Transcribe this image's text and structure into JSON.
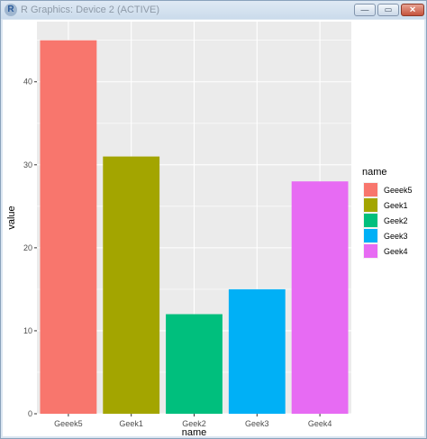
{
  "window": {
    "title": "R Graphics: Device 2 (ACTIVE)",
    "app_icon_letter": "R",
    "minimize_glyph": "—",
    "maximize_glyph": "▭",
    "close_glyph": "✕"
  },
  "chart_data": {
    "type": "bar",
    "categories": [
      "Geeek5",
      "Geek1",
      "Geek2",
      "Geek3",
      "Geek4"
    ],
    "values": [
      45,
      31,
      12,
      15,
      28
    ],
    "colors": [
      "#F8766D",
      "#A3A500",
      "#00BF7D",
      "#00B0F6",
      "#E76BF3"
    ],
    "xlabel": "name",
    "ylabel": "value",
    "ylim": [
      0,
      47.25
    ],
    "yticks": [
      0,
      10,
      20,
      30,
      40
    ],
    "grid": true,
    "panel_background": "#EBEBEB",
    "legend": {
      "title": "name",
      "placement": "right",
      "entries": [
        "Geeek5",
        "Geek1",
        "Geek2",
        "Geek3",
        "Geek4"
      ]
    }
  }
}
